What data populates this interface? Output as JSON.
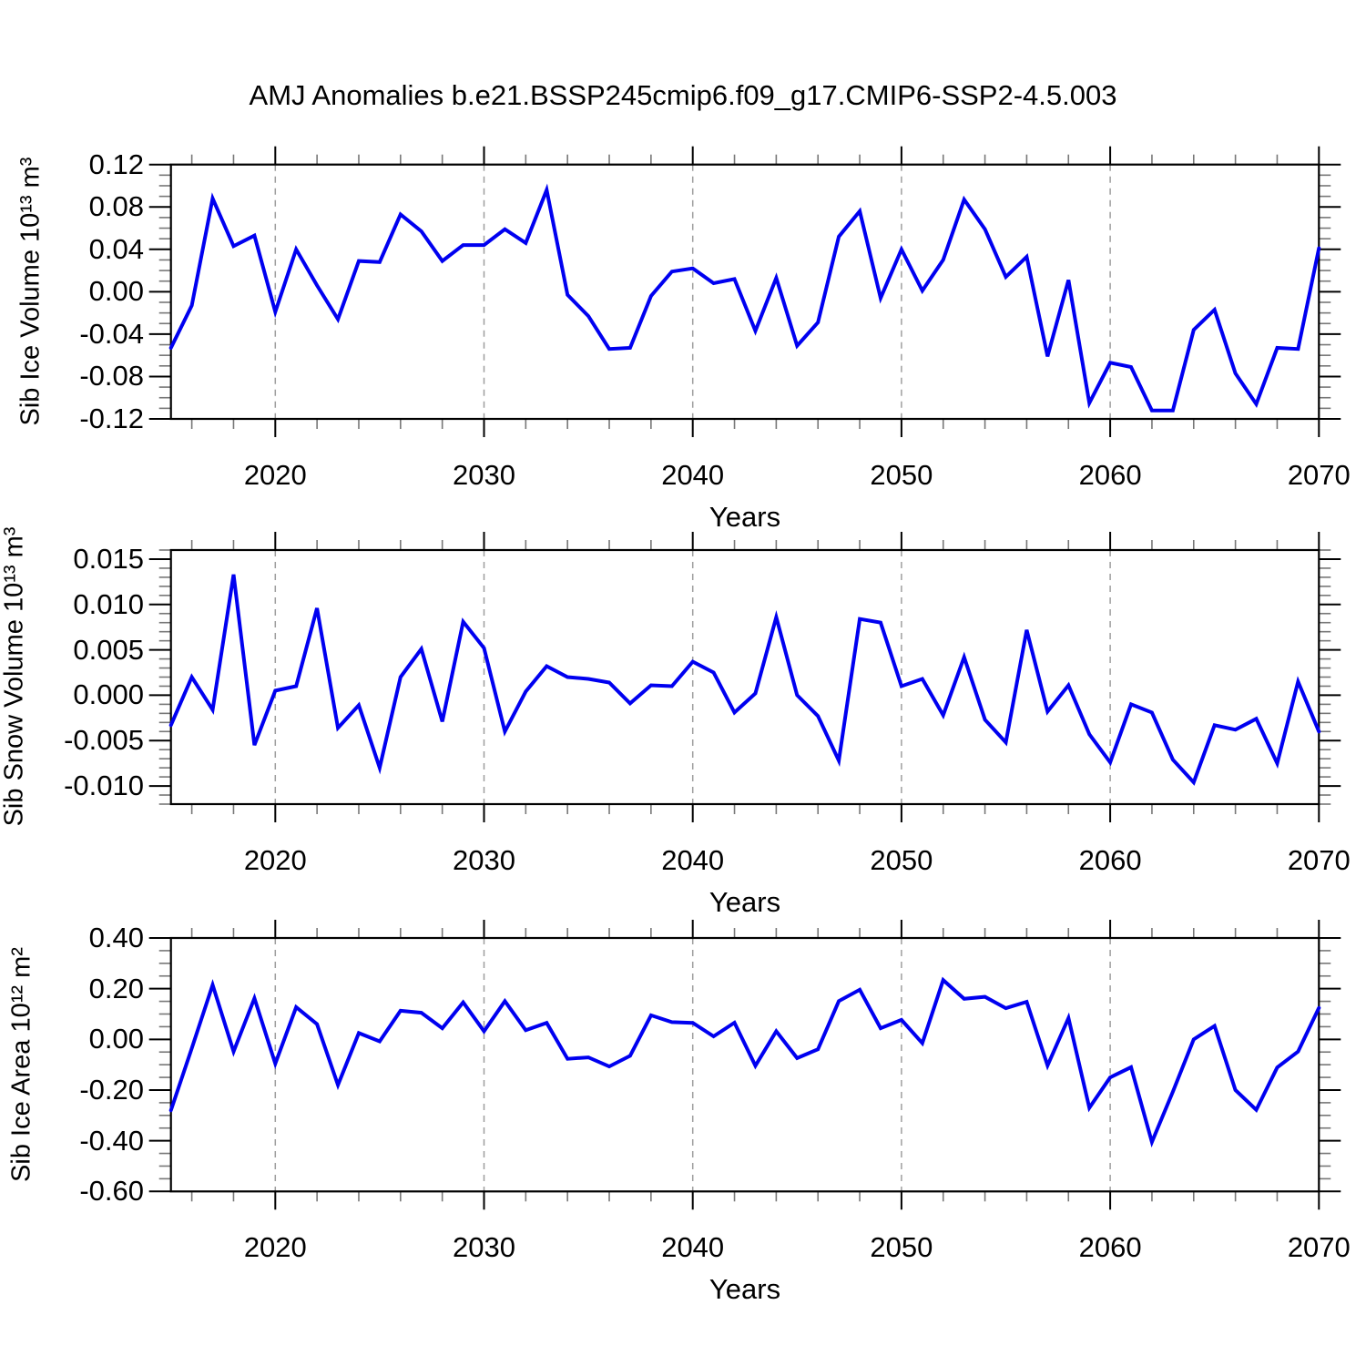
{
  "title": "AMJ Anomalies b.e21.BSSP245cmip6.f09_g17.CMIP6-SSP2-4.5.003",
  "line_color": "#0000f0",
  "grid_color": "#9e9e9e",
  "axis_color": "#000000",
  "minor_tick_color": "#777777",
  "x_axis": {
    "label": "Years",
    "start_year": 2015,
    "end_year": 2070,
    "major_ticks": [
      2020,
      2030,
      2040,
      2050,
      2060,
      2070
    ],
    "gridline_years": [
      2020,
      2030,
      2040,
      2050,
      2060
    ],
    "minor_step": 2
  },
  "chart_data": [
    {
      "type": "line",
      "id": "ice-volume",
      "ylabel": "Sib Ice Volume 10¹³ m³",
      "xlabel": "Years",
      "x_start": 2015,
      "x_step": 1,
      "ylim": [
        -0.12,
        0.12
      ],
      "yticks": [
        0.12,
        0.08,
        0.04,
        0.0,
        -0.04,
        -0.08,
        -0.12
      ],
      "ytick_labels": [
        "0.12",
        "0.08",
        "0.04",
        "0.00",
        "-0.04",
        "-0.08",
        "-0.12"
      ],
      "y_minor_step": 0.01,
      "grid": "vertical-dashed",
      "legend": "none",
      "values": [
        -0.053,
        -0.013,
        0.088,
        0.043,
        0.053,
        -0.019,
        0.04,
        0.006,
        -0.026,
        0.029,
        0.028,
        0.073,
        0.057,
        0.029,
        0.044,
        0.044,
        0.059,
        0.046,
        0.096,
        -0.003,
        -0.023,
        -0.054,
        -0.053,
        -0.004,
        0.019,
        0.022,
        0.008,
        0.012,
        -0.037,
        0.013,
        -0.051,
        -0.029,
        0.052,
        0.076,
        -0.006,
        0.04,
        0.001,
        0.03,
        0.087,
        0.059,
        0.014,
        0.033,
        -0.061,
        0.011,
        -0.105,
        -0.067,
        -0.071,
        -0.112,
        -0.112,
        -0.036,
        -0.017,
        -0.077,
        -0.106,
        -0.053,
        -0.054,
        0.041
      ]
    },
    {
      "type": "line",
      "id": "snow-volume",
      "ylabel": "Sib Snow Volume 10¹³ m³",
      "xlabel": "Years",
      "x_start": 2015,
      "x_step": 1,
      "ylim": [
        -0.012,
        0.016
      ],
      "yticks": [
        0.015,
        0.01,
        0.005,
        0.0,
        -0.005,
        -0.01
      ],
      "ytick_labels": [
        "0.015",
        "0.010",
        "0.005",
        "0.000",
        "-0.005",
        "-0.010"
      ],
      "y_minor_step": 0.001,
      "grid": "vertical-dashed",
      "legend": "none",
      "values": [
        -0.0033,
        0.002,
        -0.0016,
        0.0133,
        -0.0055,
        0.0005,
        0.001,
        0.0096,
        -0.0036,
        -0.0011,
        -0.008,
        0.002,
        0.0051,
        -0.0029,
        0.0081,
        0.0052,
        -0.004,
        0.0004,
        0.0032,
        0.002,
        0.0018,
        0.0014,
        -0.0009,
        0.0011,
        0.001,
        0.0037,
        0.0025,
        -0.0019,
        0.0002,
        0.0086,
        0.0,
        -0.0023,
        -0.0072,
        0.0084,
        0.008,
        0.001,
        0.0018,
        -0.0022,
        0.0042,
        -0.0027,
        -0.0052,
        0.0072,
        -0.0018,
        0.0011,
        -0.0043,
        -0.0074,
        -0.001,
        -0.0019,
        -0.0071,
        -0.0096,
        -0.0033,
        -0.0038,
        -0.0026,
        -0.0075,
        0.0015,
        -0.004
      ]
    },
    {
      "type": "line",
      "id": "ice-area",
      "ylabel": "Sib Ice Area 10¹² m²",
      "xlabel": "Years",
      "x_start": 2015,
      "x_step": 1,
      "ylim": [
        -0.6,
        0.4
      ],
      "yticks": [
        0.4,
        0.2,
        0.0,
        -0.2,
        -0.4,
        -0.6
      ],
      "ytick_labels": [
        "0.40",
        "0.20",
        "0.00",
        "-0.20",
        "-0.40",
        "-0.60"
      ],
      "y_minor_step": 0.05,
      "grid": "vertical-dashed",
      "legend": "none",
      "values": [
        -0.28,
        -0.035,
        0.215,
        -0.048,
        0.162,
        -0.096,
        0.127,
        0.06,
        -0.18,
        0.025,
        -0.008,
        0.113,
        0.105,
        0.044,
        0.146,
        0.032,
        0.151,
        0.036,
        0.065,
        -0.077,
        -0.071,
        -0.107,
        -0.065,
        0.095,
        0.068,
        0.065,
        0.012,
        0.066,
        -0.104,
        0.032,
        -0.074,
        -0.039,
        0.151,
        0.196,
        0.044,
        0.077,
        -0.015,
        0.234,
        0.16,
        0.168,
        0.123,
        0.148,
        -0.103,
        0.084,
        -0.27,
        -0.15,
        -0.11,
        -0.405,
        -0.207,
        0.0,
        0.053,
        -0.2,
        -0.278,
        -0.111,
        -0.048,
        0.124
      ]
    }
  ]
}
